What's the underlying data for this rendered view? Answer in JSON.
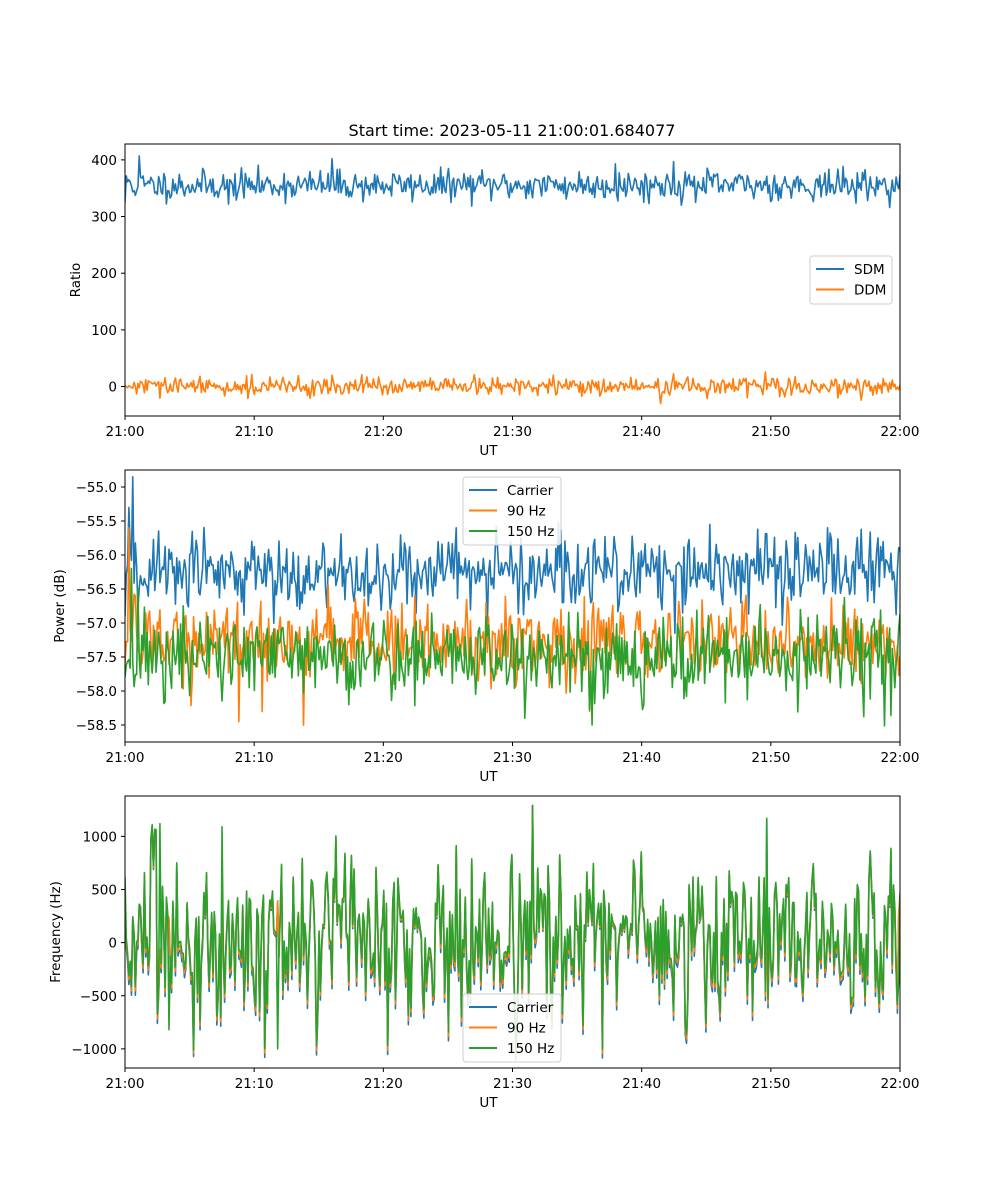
{
  "figure_title": "Start time: 2023-05-11 21:00:01.684077",
  "colors": {
    "blue": "#1f77b4",
    "orange": "#ff7f0e",
    "green": "#2ca02c"
  },
  "chart_data": [
    {
      "type": "line",
      "title": "Start time: 2023-05-11 21:00:01.684077",
      "xlabel": "UT",
      "ylabel": "Ratio",
      "x_ticks": [
        "21:00",
        "21:10",
        "21:20",
        "21:30",
        "21:40",
        "21:50",
        "22:00"
      ],
      "y_ticks": [
        "0",
        "100",
        "200",
        "300",
        "400"
      ],
      "ylim": [
        -52,
        428
      ],
      "xlim": [
        "21:00",
        "22:00"
      ],
      "legend": "center-right",
      "series": [
        {
          "name": "SDM",
          "color": "#1f77b4",
          "mean": 355,
          "spread": 13,
          "seed": 11,
          "points": [
            [
              0.0,
              325
            ],
            [
              0.3,
              365
            ],
            [
              1.1,
              407
            ],
            [
              8.0,
              322
            ],
            [
              16.0,
              402
            ],
            [
              38.0,
              393
            ],
            [
              42.5,
              397
            ],
            [
              59.9,
              349
            ]
          ]
        },
        {
          "name": "DDM",
          "color": "#ff7f0e",
          "mean": 0,
          "spread": 8,
          "seed": 29,
          "points": [
            [
              0.0,
              2
            ],
            [
              41.5,
              -30
            ],
            [
              60.0,
              3
            ]
          ]
        }
      ]
    },
    {
      "type": "line",
      "xlabel": "UT",
      "ylabel": "Power (dB)",
      "x_ticks": [
        "21:00",
        "21:10",
        "21:20",
        "21:30",
        "21:40",
        "21:50",
        "22:00"
      ],
      "y_ticks": [
        "−58.5",
        "−58.0",
        "−57.5",
        "−57.0",
        "−56.5",
        "−56.0",
        "−55.5",
        "−55.0"
      ],
      "ylim": [
        -58.75,
        -54.75
      ],
      "xlim": [
        "21:00",
        "22:00"
      ],
      "legend": "top-center",
      "series": [
        {
          "name": "Carrier",
          "color": "#1f77b4",
          "mean": -56.25,
          "spread": 0.28,
          "seed": 43,
          "points": [
            [
              0.0,
              -56.9
            ],
            [
              0.3,
              -55.3
            ],
            [
              0.6,
              -54.85
            ],
            [
              1.0,
              -56.8
            ],
            [
              25.6,
              -55.6
            ],
            [
              45.3,
              -55.55
            ],
            [
              54.4,
              -55.6
            ]
          ]
        },
        {
          "name": "90 Hz",
          "color": "#ff7f0e",
          "mean": -57.3,
          "spread": 0.3,
          "seed": 57,
          "points": [
            [
              0.0,
              -57.6
            ],
            [
              0.3,
              -55.6
            ],
            [
              0.8,
              -56.6
            ],
            [
              8.8,
              -58.45
            ],
            [
              36.0,
              -58.3
            ]
          ]
        },
        {
          "name": "150 Hz",
          "color": "#2ca02c",
          "mean": -57.5,
          "spread": 0.32,
          "seed": 71,
          "points": [
            [
              0.0,
              -57.8
            ],
            [
              0.5,
              -56.2
            ],
            [
              1.0,
              -56.5
            ],
            [
              31.0,
              -58.4
            ],
            [
              36.2,
              -58.5
            ]
          ]
        }
      ]
    },
    {
      "type": "line",
      "xlabel": "UT",
      "ylabel": "Frequency (Hz)",
      "x_ticks": [
        "21:00",
        "21:10",
        "21:20",
        "21:30",
        "21:40",
        "21:50",
        "22:00"
      ],
      "y_ticks": [
        "−1000",
        "−500",
        "0",
        "500",
        "1000"
      ],
      "ylim": [
        -1180,
        1380
      ],
      "xlim": [
        "21:00",
        "22:00"
      ],
      "legend": "lower-center",
      "series": [
        {
          "name": "Carrier",
          "color": "#1f77b4",
          "offset": -60,
          "seed": 83,
          "points": [
            [
              5.3,
              -1070
            ],
            [
              31.6,
              1290
            ],
            [
              49.7,
              1160
            ]
          ]
        },
        {
          "name": "90 Hz",
          "color": "#ff7f0e",
          "offset": -30,
          "seed": 83,
          "points": [
            [
              5.3,
              -1040
            ],
            [
              31.6,
              1290
            ]
          ]
        },
        {
          "name": "150 Hz",
          "color": "#2ca02c",
          "offset": 0,
          "mean": 40,
          "spread": 430,
          "seed": 83,
          "points": [
            [
              0.0,
              620
            ],
            [
              2.7,
              1120
            ],
            [
              3.4,
              -820
            ],
            [
              5.3,
              -1010
            ],
            [
              7.5,
              1090
            ],
            [
              11.8,
              -1000
            ],
            [
              31.6,
              1290
            ],
            [
              49.7,
              1170
            ],
            [
              59.9,
              -380
            ]
          ]
        }
      ]
    }
  ]
}
